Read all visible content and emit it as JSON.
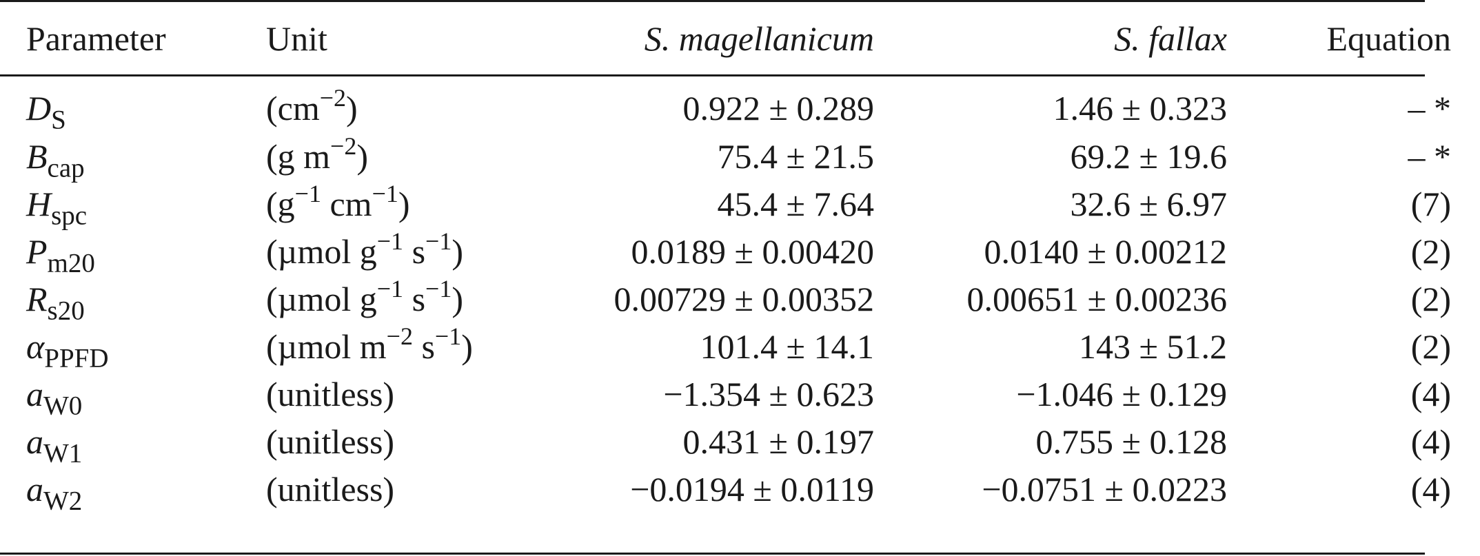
{
  "table": {
    "headers": {
      "parameter": "Parameter",
      "unit": "Unit",
      "species1": "S. magellanicum",
      "species2": "S. fallax",
      "equation": "Equation"
    },
    "rows": [
      {
        "symbol": "D",
        "subscript": "S",
        "unit_parts": [
          "(cm",
          "−2",
          ")"
        ],
        "mag": "0.922 ± 0.289",
        "fal": "1.46 ± 0.323",
        "eq": "– *"
      },
      {
        "symbol": "B",
        "subscript": "cap",
        "unit_parts": [
          "(g m",
          "−2",
          ")"
        ],
        "mag": "75.4 ± 21.5",
        "fal": "69.2 ± 19.6",
        "eq": "– *"
      },
      {
        "symbol": "H",
        "subscript": "spc",
        "unit_parts": [
          "(g",
          "−1",
          " cm",
          "−1",
          ")"
        ],
        "mag": "45.4 ± 7.64",
        "fal": "32.6 ± 6.97",
        "eq": "(7)"
      },
      {
        "symbol": "P",
        "subscript": "m20",
        "unit_parts": [
          "(µmol g",
          "−1",
          " s",
          "−1",
          ")"
        ],
        "mag": "0.0189 ± 0.00420",
        "fal": "0.0140 ± 0.00212",
        "eq": "(2)"
      },
      {
        "symbol": "R",
        "subscript": "s20",
        "unit_parts": [
          "(µmol g",
          "−1",
          " s",
          "−1",
          ")"
        ],
        "mag": "0.00729 ± 0.00352",
        "fal": "0.00651 ± 0.00236",
        "eq": "(2)"
      },
      {
        "symbol": "α",
        "subscript": "PPFD",
        "unit_parts": [
          "(µmol m",
          "−2",
          " s",
          "−1",
          ")"
        ],
        "mag": "101.4 ± 14.1",
        "fal": "143 ± 51.2",
        "eq": "(2)"
      },
      {
        "symbol": "a",
        "subscript": "W0",
        "unit_parts": [
          "(unitless)"
        ],
        "mag": "−1.354 ± 0.623",
        "fal": "−1.046 ± 0.129",
        "eq": "(4)"
      },
      {
        "symbol": "a",
        "subscript": "W1",
        "unit_parts": [
          "(unitless)"
        ],
        "mag": "0.431 ± 0.197",
        "fal": "0.755 ± 0.128",
        "eq": "(4)"
      },
      {
        "symbol": "a",
        "subscript": "W2",
        "unit_parts": [
          "(unitless)"
        ],
        "mag": "−0.0194 ± 0.0119",
        "fal": "−0.0751 ± 0.0223",
        "eq": "(4)"
      }
    ]
  }
}
